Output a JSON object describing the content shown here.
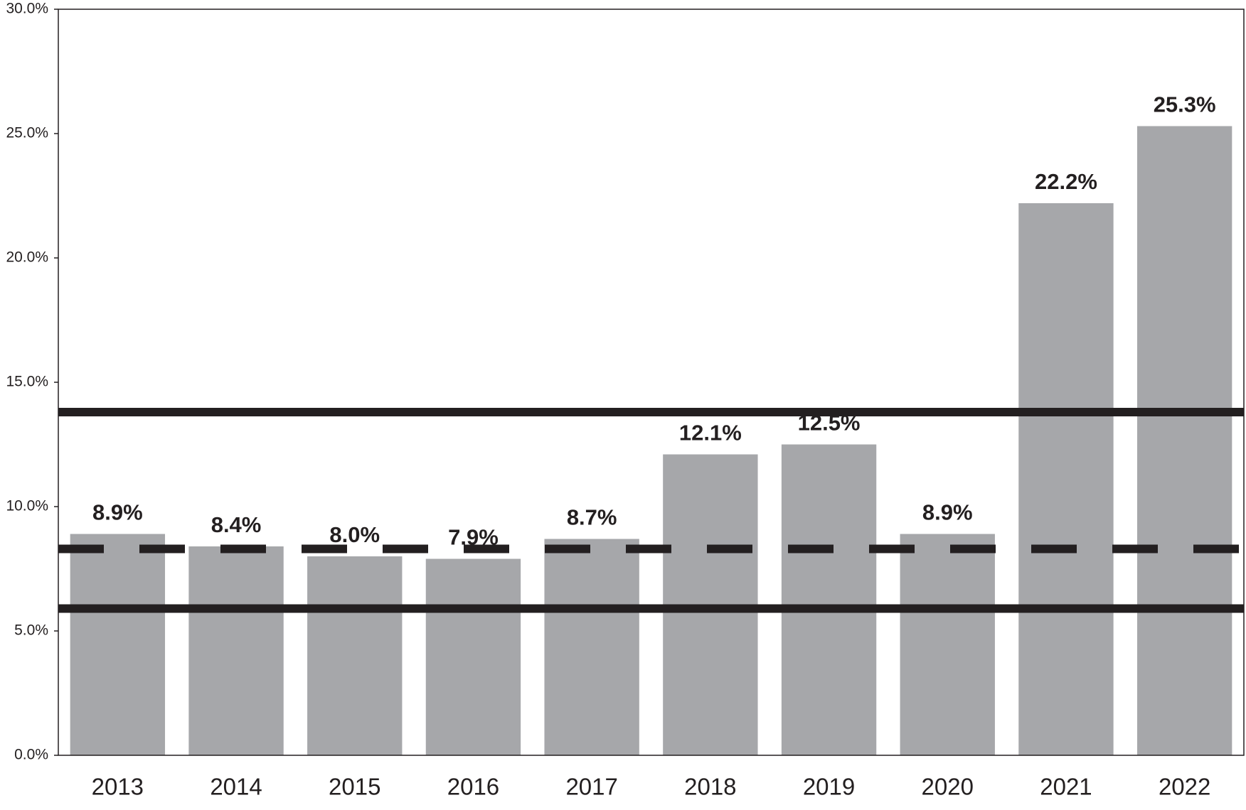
{
  "chart_data": {
    "type": "bar",
    "categories": [
      "2013",
      "2014",
      "2015",
      "2016",
      "2017",
      "2018",
      "2019",
      "2020",
      "2021",
      "2022"
    ],
    "values": [
      8.9,
      8.4,
      8.0,
      7.9,
      8.7,
      12.1,
      12.5,
      8.9,
      22.2,
      25.3
    ],
    "value_labels": [
      "8.9%",
      "8.4%",
      "8.0%",
      "7.9%",
      "8.7%",
      "12.1%",
      "12.5%",
      "8.9%",
      "22.2%",
      "25.3%"
    ],
    "color": "#a6a7aa",
    "ylim": [
      0,
      30
    ],
    "yticks": [
      {
        "value": 0,
        "label": "0.0%"
      },
      {
        "value": 5,
        "label": "5.0%"
      },
      {
        "value": 10,
        "label": "10.0%"
      },
      {
        "value": 15,
        "label": "15.0%"
      },
      {
        "value": 20,
        "label": "20.0%"
      },
      {
        "value": 25,
        "label": "25.0%"
      },
      {
        "value": 30,
        "label": "30.0%"
      }
    ],
    "reference_lines": [
      {
        "value": 13.8,
        "style": "solid"
      },
      {
        "value": 8.3,
        "style": "dashed"
      },
      {
        "value": 5.9,
        "style": "solid"
      }
    ]
  }
}
